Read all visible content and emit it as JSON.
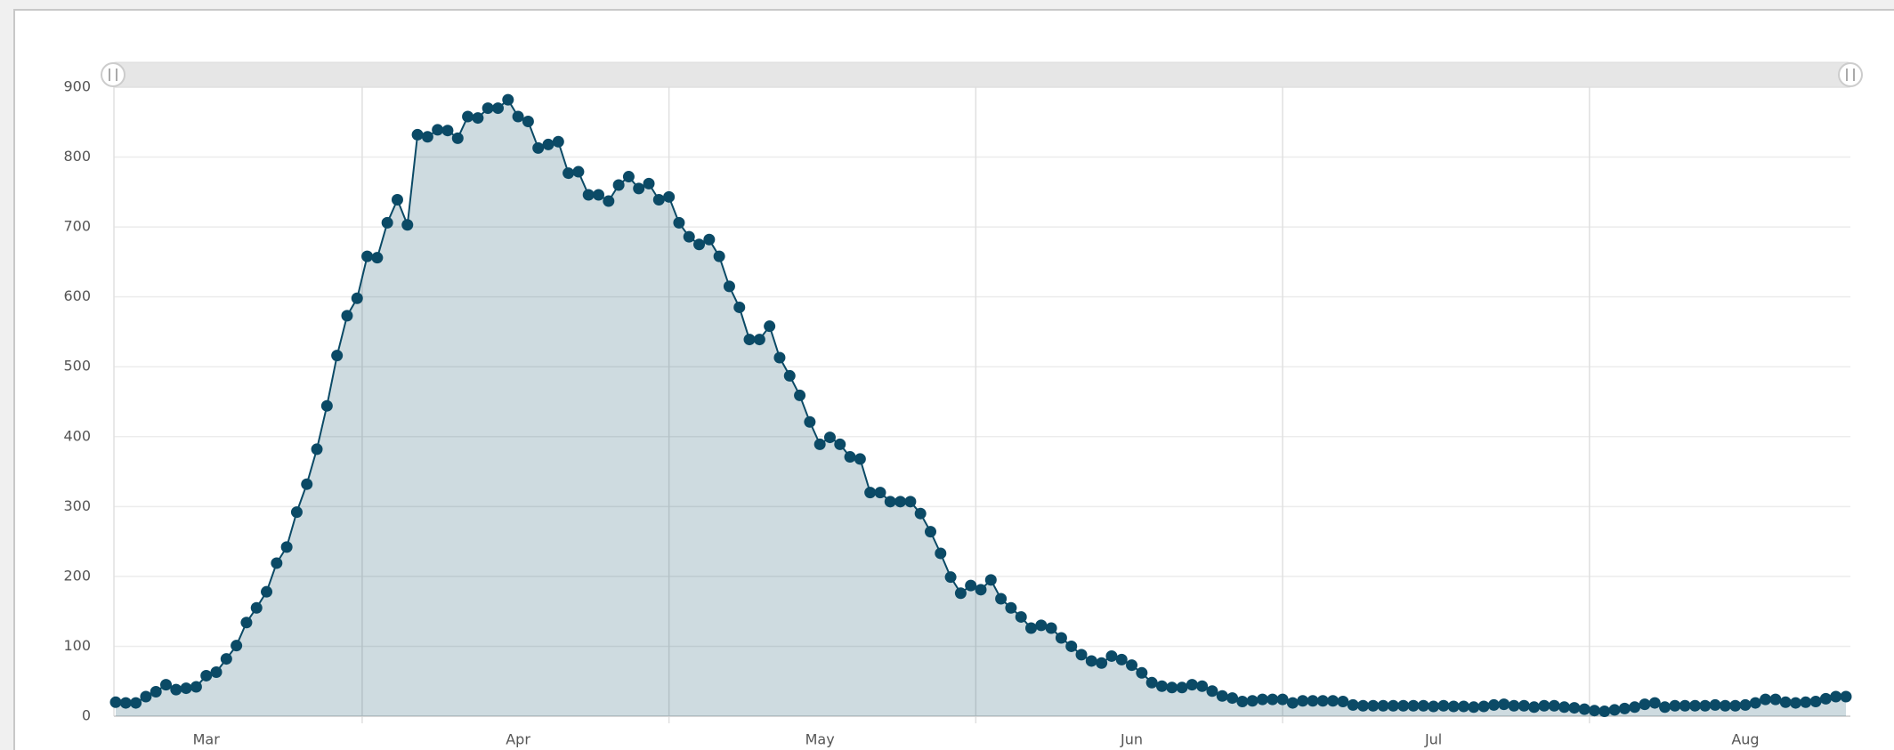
{
  "chart_data": {
    "type": "area",
    "categories": [
      null,
      null,
      null,
      null,
      null,
      null,
      null,
      null,
      null,
      "Mar",
      null,
      null,
      null,
      null,
      null,
      null,
      null,
      null,
      null,
      null,
      null,
      null,
      null,
      null,
      null,
      null,
      null,
      null,
      null,
      null,
      null,
      null,
      null,
      null,
      null,
      null,
      null,
      null,
      null,
      null,
      "Apr",
      null,
      null,
      null,
      null,
      null,
      null,
      null,
      null,
      null,
      null,
      null,
      null,
      null,
      null,
      null,
      null,
      null,
      null,
      null,
      null,
      null,
      null,
      null,
      null,
      null,
      null,
      null,
      null,
      null,
      "May",
      null,
      null,
      null,
      null,
      null,
      null,
      null,
      null,
      null,
      null,
      null,
      null,
      null,
      null,
      null,
      null,
      null,
      null,
      null,
      null,
      null,
      null,
      null,
      null,
      null,
      null,
      null,
      null,
      null,
      null,
      "Jun",
      null,
      null,
      null,
      null,
      null,
      null,
      null,
      null,
      null,
      null,
      null,
      null,
      null,
      null,
      null,
      null,
      null,
      null,
      null,
      null,
      null,
      null,
      null,
      null,
      null,
      null,
      null,
      null,
      null,
      "Jul",
      null,
      null,
      null,
      null,
      null,
      null,
      null,
      null,
      null,
      null,
      null,
      null,
      null,
      null,
      null,
      null,
      null,
      null,
      null,
      null,
      null,
      null,
      null,
      null,
      null,
      null,
      null,
      null,
      null,
      null,
      "Aug",
      null,
      null,
      null,
      null,
      null,
      null,
      null,
      null,
      null,
      null
    ],
    "values": [
      20,
      19,
      19,
      28,
      35,
      45,
      38,
      40,
      42,
      58,
      63,
      82,
      101,
      134,
      155,
      178,
      219,
      242,
      292,
      332,
      382,
      444,
      516,
      573,
      598,
      658,
      656,
      706,
      739,
      703,
      832,
      829,
      839,
      838,
      827,
      858,
      856,
      870,
      870,
      882,
      858,
      851,
      813,
      818,
      822,
      777,
      779,
      746,
      746,
      737,
      760,
      772,
      755,
      762,
      739,
      743,
      706,
      686,
      675,
      682,
      658,
      615,
      585,
      539,
      539,
      558,
      513,
      487,
      459,
      421,
      389,
      399,
      389,
      371,
      368,
      320,
      320,
      307,
      307,
      307,
      290,
      264,
      233,
      199,
      176,
      187,
      181,
      195,
      168,
      155,
      142,
      126,
      130,
      126,
      112,
      100,
      88,
      79,
      76,
      86,
      81,
      73,
      62,
      48,
      43,
      41,
      41,
      45,
      43,
      36,
      29,
      26,
      21,
      22,
      24,
      24,
      24,
      19,
      22,
      22,
      22,
      22,
      21,
      16,
      15,
      15,
      15,
      15,
      15,
      15,
      15,
      14,
      15,
      14,
      14,
      13,
      14,
      16,
      17,
      15,
      15,
      13,
      15,
      15,
      13,
      12,
      10,
      8,
      7,
      9,
      11,
      13,
      17,
      19,
      13,
      15,
      15,
      15,
      15,
      16,
      15,
      15,
      16,
      19,
      24,
      24,
      20,
      19,
      20,
      21,
      25,
      28,
      28
    ],
    "color": "#0b4a66",
    "ylim": [
      0,
      900
    ],
    "yticks": [
      0,
      100,
      200,
      300,
      400,
      500,
      600,
      700,
      800,
      900
    ],
    "grid": true
  }
}
